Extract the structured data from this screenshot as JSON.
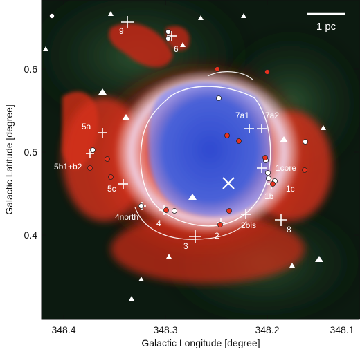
{
  "figure": {
    "scale_bar": "1 pc",
    "x_axis": {
      "title": "Galactic Longitude [degree]",
      "ticks": [
        "348.4",
        "348.3",
        "348.2",
        "348.1"
      ]
    },
    "y_axis": {
      "title": "Galactic Latitude [degree]",
      "ticks": [
        "0.6",
        "0.5",
        "0.4"
      ]
    },
    "region_labels": [
      "9",
      "6",
      "7a1",
      "7a2",
      "5a",
      "5b1+b2",
      "1core",
      "5c",
      "1c",
      "1b",
      "4north",
      "4",
      "2bis",
      "2",
      "3",
      "8"
    ],
    "colors": {
      "background": "#0b1a10",
      "shell_red": "#e8321e",
      "cavity_blue": "#3a52cc",
      "contour": "#ffffff"
    }
  }
}
